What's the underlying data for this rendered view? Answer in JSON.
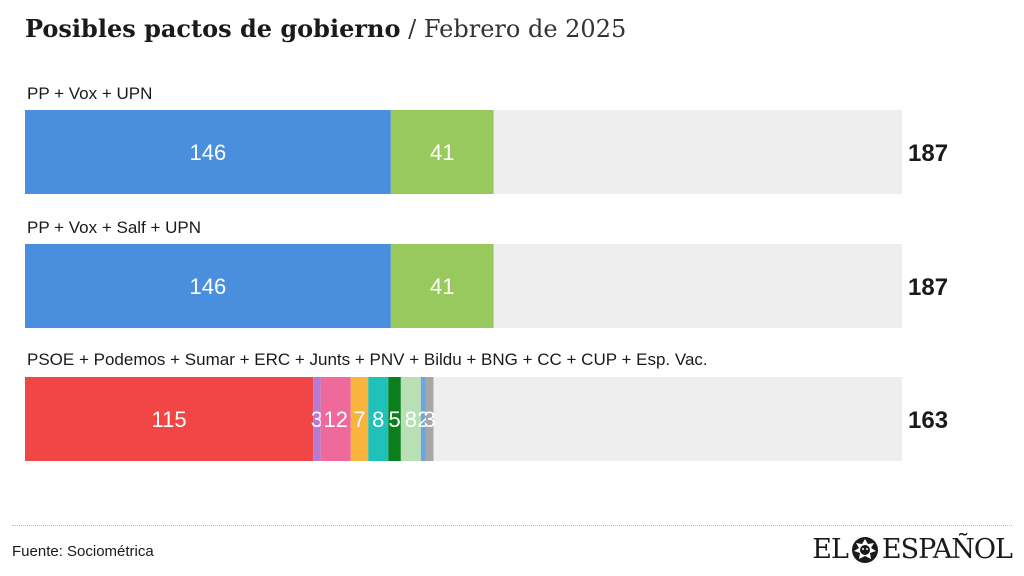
{
  "title": {
    "main": "Posibles pactos de gobierno",
    "separator": "/",
    "date": "Febrero de 2025"
  },
  "source": "Fuente: Sociométrica",
  "brand": {
    "left": "EL",
    "right": "ESPAÑOL",
    "icon": "lion-head-icon"
  },
  "chart_data": {
    "type": "stacked-bar-horizontal",
    "title": "Posibles pactos de gobierno / Febrero de 2025",
    "scale_max": 350,
    "rows": [
      {
        "label": "PP + Vox + UPN",
        "total": "187",
        "segments": [
          {
            "value": 146,
            "color": "#4a8fdd"
          },
          {
            "value": 41,
            "color": "#97c95c"
          }
        ]
      },
      {
        "label": "PP + Vox + Salf + UPN",
        "total": "187",
        "segments": [
          {
            "value": 146,
            "color": "#4a8fdd"
          },
          {
            "value": 41,
            "color": "#97c95c"
          }
        ]
      },
      {
        "label": "PSOE + Podemos + Sumar + ERC + Junts + PNV + Bildu + BNG + CC + CUP + Esp. Vac.",
        "total": "163",
        "segments": [
          {
            "value": 115,
            "color": "#f24545"
          },
          {
            "value": 3,
            "color": "#b57bd4"
          },
          {
            "value": 12,
            "color": "#ef6a9a"
          },
          {
            "value": 7,
            "color": "#f8b43d"
          },
          {
            "value": 8,
            "color": "#1fc1b8"
          },
          {
            "value": 5,
            "color": "#0a7f1c"
          },
          {
            "value": 8,
            "color": "#b9dfb5"
          },
          {
            "value": 2,
            "color": "#6aa6e2"
          },
          {
            "value": 3,
            "color": "#a6a6a6"
          }
        ]
      }
    ],
    "track_color": "#eeeeee"
  }
}
